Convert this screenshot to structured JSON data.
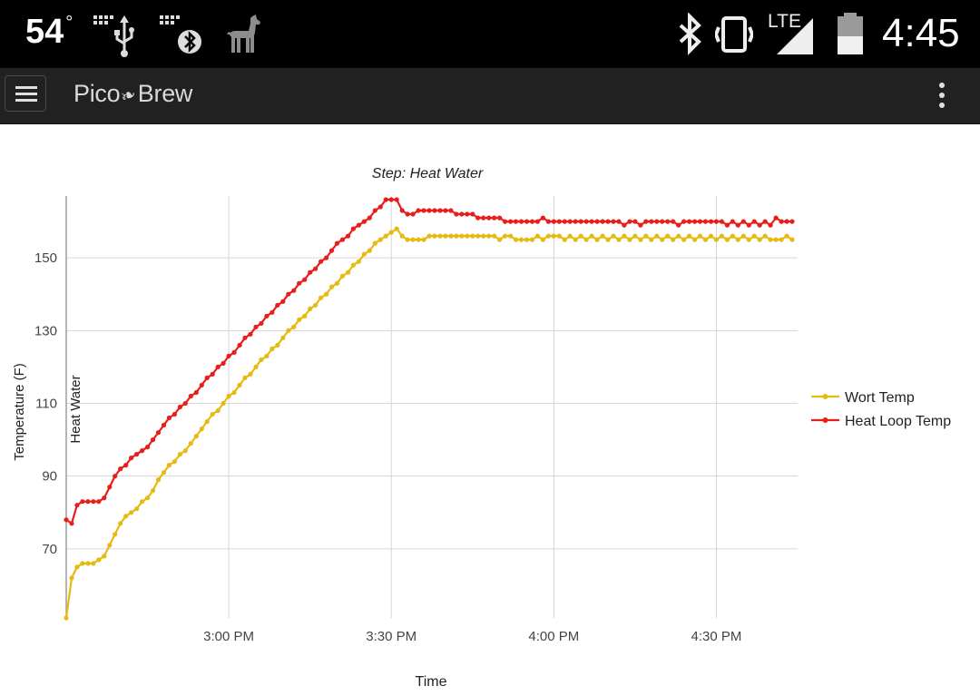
{
  "status_bar": {
    "temperature": "54",
    "degree_symbol": "°",
    "time": "4:45",
    "network_label": "LTE",
    "icons": [
      "usb-debug-icon",
      "bluetooth-debug-icon",
      "alpaca-icon",
      "bluetooth-icon",
      "vibrate-icon",
      "lte-signal-icon",
      "battery-icon"
    ]
  },
  "app_bar": {
    "brand_prefix": "Pico",
    "brand_leaf": "❧",
    "brand_suffix": "Brew",
    "menu_icon": "hamburger-menu-icon",
    "overflow_icon": "more-vert-icon"
  },
  "colors": {
    "wort": "#e5bb12",
    "heat_loop": "#e81e1b",
    "grid": "#d6d6d6",
    "axis": "#9e9e9e"
  },
  "chart_data": {
    "type": "line",
    "title": "Step: Heat Water",
    "xlabel": "Time",
    "ylabel": "Temperature (F)",
    "annotation": "Heat Water",
    "x_ticks": [
      "3:00 PM",
      "3:30 PM",
      "4:00 PM",
      "4:30 PM"
    ],
    "y_ticks": [
      70,
      90,
      110,
      130,
      150
    ],
    "xlim": [
      "2:30 PM",
      "4:45 PM"
    ],
    "ylim": [
      51,
      167
    ],
    "legend": "right",
    "series": [
      {
        "name": "Wort Temp",
        "color": "#e5bb12",
        "points": [
          [
            "2:30",
            51
          ],
          [
            "2:31",
            62
          ],
          [
            "2:32",
            65
          ],
          [
            "2:33",
            66
          ],
          [
            "2:34",
            66
          ],
          [
            "2:35",
            66
          ],
          [
            "2:36",
            67
          ],
          [
            "2:37",
            68
          ],
          [
            "2:38",
            71
          ],
          [
            "2:39",
            74
          ],
          [
            "2:40",
            77
          ],
          [
            "2:41",
            79
          ],
          [
            "2:42",
            80
          ],
          [
            "2:43",
            81
          ],
          [
            "2:44",
            83
          ],
          [
            "2:45",
            84
          ],
          [
            "2:46",
            86
          ],
          [
            "2:47",
            89
          ],
          [
            "2:48",
            91
          ],
          [
            "2:49",
            93
          ],
          [
            "2:50",
            94
          ],
          [
            "2:51",
            96
          ],
          [
            "2:52",
            97
          ],
          [
            "2:53",
            99
          ],
          [
            "2:54",
            101
          ],
          [
            "2:55",
            103
          ],
          [
            "2:56",
            105
          ],
          [
            "2:57",
            107
          ],
          [
            "2:58",
            108
          ],
          [
            "2:59",
            110
          ],
          [
            "3:00",
            112
          ],
          [
            "3:01",
            113
          ],
          [
            "3:02",
            115
          ],
          [
            "3:03",
            117
          ],
          [
            "3:04",
            118
          ],
          [
            "3:05",
            120
          ],
          [
            "3:06",
            122
          ],
          [
            "3:07",
            123
          ],
          [
            "3:08",
            125
          ],
          [
            "3:09",
            126
          ],
          [
            "3:10",
            128
          ],
          [
            "3:11",
            130
          ],
          [
            "3:12",
            131
          ],
          [
            "3:13",
            133
          ],
          [
            "3:14",
            134
          ],
          [
            "3:15",
            136
          ],
          [
            "3:16",
            137
          ],
          [
            "3:17",
            139
          ],
          [
            "3:18",
            140
          ],
          [
            "3:19",
            142
          ],
          [
            "3:20",
            143
          ],
          [
            "3:21",
            145
          ],
          [
            "3:22",
            146
          ],
          [
            "3:23",
            148
          ],
          [
            "3:24",
            149
          ],
          [
            "3:25",
            151
          ],
          [
            "3:26",
            152
          ],
          [
            "3:27",
            154
          ],
          [
            "3:28",
            155
          ],
          [
            "3:29",
            156
          ],
          [
            "3:30",
            157
          ],
          [
            "3:31",
            158
          ],
          [
            "3:32",
            156
          ],
          [
            "3:33",
            155
          ],
          [
            "3:34",
            155
          ],
          [
            "3:35",
            155
          ],
          [
            "3:36",
            155
          ],
          [
            "3:37",
            156
          ],
          [
            "3:38",
            156
          ],
          [
            "3:39",
            156
          ],
          [
            "3:40",
            156
          ],
          [
            "3:41",
            156
          ],
          [
            "3:42",
            156
          ],
          [
            "3:43",
            156
          ],
          [
            "3:44",
            156
          ],
          [
            "3:45",
            156
          ],
          [
            "3:46",
            156
          ],
          [
            "3:47",
            156
          ],
          [
            "3:48",
            156
          ],
          [
            "3:49",
            156
          ],
          [
            "3:50",
            155
          ],
          [
            "3:51",
            156
          ],
          [
            "3:52",
            156
          ],
          [
            "3:53",
            155
          ],
          [
            "3:54",
            155
          ],
          [
            "3:55",
            155
          ],
          [
            "3:56",
            155
          ],
          [
            "3:57",
            156
          ],
          [
            "3:58",
            155
          ],
          [
            "3:59",
            156
          ],
          [
            "4:00",
            156
          ],
          [
            "4:01",
            156
          ],
          [
            "4:02",
            155
          ],
          [
            "4:03",
            156
          ],
          [
            "4:04",
            155
          ],
          [
            "4:05",
            156
          ],
          [
            "4:06",
            155
          ],
          [
            "4:07",
            156
          ],
          [
            "4:08",
            155
          ],
          [
            "4:09",
            156
          ],
          [
            "4:10",
            155
          ],
          [
            "4:11",
            156
          ],
          [
            "4:12",
            155
          ],
          [
            "4:13",
            156
          ],
          [
            "4:14",
            155
          ],
          [
            "4:15",
            156
          ],
          [
            "4:16",
            155
          ],
          [
            "4:17",
            156
          ],
          [
            "4:18",
            155
          ],
          [
            "4:19",
            156
          ],
          [
            "4:20",
            155
          ],
          [
            "4:21",
            156
          ],
          [
            "4:22",
            155
          ],
          [
            "4:23",
            156
          ],
          [
            "4:24",
            155
          ],
          [
            "4:25",
            156
          ],
          [
            "4:26",
            155
          ],
          [
            "4:27",
            156
          ],
          [
            "4:28",
            155
          ],
          [
            "4:29",
            156
          ],
          [
            "4:30",
            155
          ],
          [
            "4:31",
            156
          ],
          [
            "4:32",
            155
          ],
          [
            "4:33",
            156
          ],
          [
            "4:34",
            155
          ],
          [
            "4:35",
            156
          ],
          [
            "4:36",
            155
          ],
          [
            "4:37",
            156
          ],
          [
            "4:38",
            155
          ],
          [
            "4:39",
            156
          ],
          [
            "4:40",
            155
          ],
          [
            "4:41",
            155
          ],
          [
            "4:42",
            155
          ],
          [
            "4:43",
            156
          ],
          [
            "4:44",
            155
          ]
        ]
      },
      {
        "name": "Heat Loop Temp",
        "color": "#e81e1b",
        "points": [
          [
            "2:30",
            78
          ],
          [
            "2:31",
            77
          ],
          [
            "2:32",
            82
          ],
          [
            "2:33",
            83
          ],
          [
            "2:34",
            83
          ],
          [
            "2:35",
            83
          ],
          [
            "2:36",
            83
          ],
          [
            "2:37",
            84
          ],
          [
            "2:38",
            87
          ],
          [
            "2:39",
            90
          ],
          [
            "2:40",
            92
          ],
          [
            "2:41",
            93
          ],
          [
            "2:42",
            95
          ],
          [
            "2:43",
            96
          ],
          [
            "2:44",
            97
          ],
          [
            "2:45",
            98
          ],
          [
            "2:46",
            100
          ],
          [
            "2:47",
            102
          ],
          [
            "2:48",
            104
          ],
          [
            "2:49",
            106
          ],
          [
            "2:50",
            107
          ],
          [
            "2:51",
            109
          ],
          [
            "2:52",
            110
          ],
          [
            "2:53",
            112
          ],
          [
            "2:54",
            113
          ],
          [
            "2:55",
            115
          ],
          [
            "2:56",
            117
          ],
          [
            "2:57",
            118
          ],
          [
            "2:58",
            120
          ],
          [
            "2:59",
            121
          ],
          [
            "3:00",
            123
          ],
          [
            "3:01",
            124
          ],
          [
            "3:02",
            126
          ],
          [
            "3:03",
            128
          ],
          [
            "3:04",
            129
          ],
          [
            "3:05",
            131
          ],
          [
            "3:06",
            132
          ],
          [
            "3:07",
            134
          ],
          [
            "3:08",
            135
          ],
          [
            "3:09",
            137
          ],
          [
            "3:10",
            138
          ],
          [
            "3:11",
            140
          ],
          [
            "3:12",
            141
          ],
          [
            "3:13",
            143
          ],
          [
            "3:14",
            144
          ],
          [
            "3:15",
            146
          ],
          [
            "3:16",
            147
          ],
          [
            "3:17",
            149
          ],
          [
            "3:18",
            150
          ],
          [
            "3:19",
            152
          ],
          [
            "3:20",
            154
          ],
          [
            "3:21",
            155
          ],
          [
            "3:22",
            156
          ],
          [
            "3:23",
            158
          ],
          [
            "3:24",
            159
          ],
          [
            "3:25",
            160
          ],
          [
            "3:26",
            161
          ],
          [
            "3:27",
            163
          ],
          [
            "3:28",
            164
          ],
          [
            "3:29",
            166
          ],
          [
            "3:30",
            166
          ],
          [
            "3:31",
            166
          ],
          [
            "3:32",
            163
          ],
          [
            "3:33",
            162
          ],
          [
            "3:34",
            162
          ],
          [
            "3:35",
            163
          ],
          [
            "3:36",
            163
          ],
          [
            "3:37",
            163
          ],
          [
            "3:38",
            163
          ],
          [
            "3:39",
            163
          ],
          [
            "3:40",
            163
          ],
          [
            "3:41",
            163
          ],
          [
            "3:42",
            162
          ],
          [
            "3:43",
            162
          ],
          [
            "3:44",
            162
          ],
          [
            "3:45",
            162
          ],
          [
            "3:46",
            161
          ],
          [
            "3:47",
            161
          ],
          [
            "3:48",
            161
          ],
          [
            "3:49",
            161
          ],
          [
            "3:50",
            161
          ],
          [
            "3:51",
            160
          ],
          [
            "3:52",
            160
          ],
          [
            "3:53",
            160
          ],
          [
            "3:54",
            160
          ],
          [
            "3:55",
            160
          ],
          [
            "3:56",
            160
          ],
          [
            "3:57",
            160
          ],
          [
            "3:58",
            161
          ],
          [
            "3:59",
            160
          ],
          [
            "4:00",
            160
          ],
          [
            "4:01",
            160
          ],
          [
            "4:02",
            160
          ],
          [
            "4:03",
            160
          ],
          [
            "4:04",
            160
          ],
          [
            "4:05",
            160
          ],
          [
            "4:06",
            160
          ],
          [
            "4:07",
            160
          ],
          [
            "4:08",
            160
          ],
          [
            "4:09",
            160
          ],
          [
            "4:10",
            160
          ],
          [
            "4:11",
            160
          ],
          [
            "4:12",
            160
          ],
          [
            "4:13",
            159
          ],
          [
            "4:14",
            160
          ],
          [
            "4:15",
            160
          ],
          [
            "4:16",
            159
          ],
          [
            "4:17",
            160
          ],
          [
            "4:18",
            160
          ],
          [
            "4:19",
            160
          ],
          [
            "4:20",
            160
          ],
          [
            "4:21",
            160
          ],
          [
            "4:22",
            160
          ],
          [
            "4:23",
            159
          ],
          [
            "4:24",
            160
          ],
          [
            "4:25",
            160
          ],
          [
            "4:26",
            160
          ],
          [
            "4:27",
            160
          ],
          [
            "4:28",
            160
          ],
          [
            "4:29",
            160
          ],
          [
            "4:30",
            160
          ],
          [
            "4:31",
            160
          ],
          [
            "4:32",
            159
          ],
          [
            "4:33",
            160
          ],
          [
            "4:34",
            159
          ],
          [
            "4:35",
            160
          ],
          [
            "4:36",
            159
          ],
          [
            "4:37",
            160
          ],
          [
            "4:38",
            159
          ],
          [
            "4:39",
            160
          ],
          [
            "4:40",
            159
          ],
          [
            "4:41",
            161
          ],
          [
            "4:42",
            160
          ],
          [
            "4:43",
            160
          ],
          [
            "4:44",
            160
          ]
        ]
      }
    ]
  }
}
